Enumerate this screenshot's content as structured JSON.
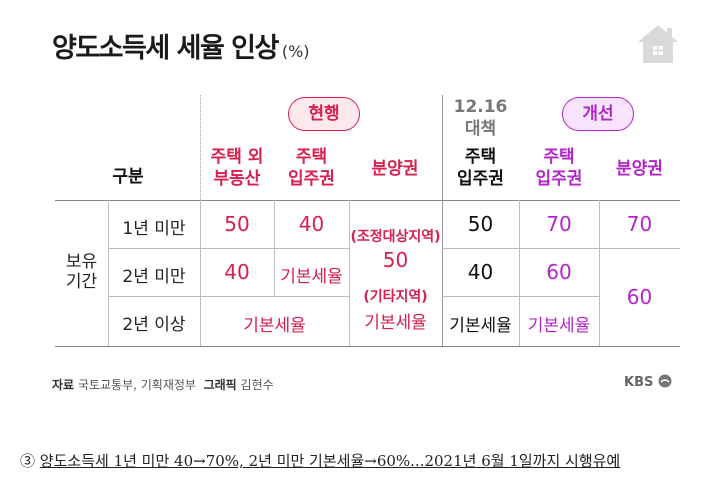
{
  "title": "양도소득세 세율 인상",
  "title_unit": "(%)",
  "pills": {
    "current": "현행",
    "improved": "개선"
  },
  "headers": {
    "category": "구분",
    "house_other_1": "주택 외",
    "house_other_2": "부동산",
    "house_1": "주택",
    "house_2": "입주권",
    "presale": "분양권",
    "dec16_1": "12.16",
    "dec16_2": "대책",
    "dec16_house": "주택",
    "dec16_dot": "·",
    "dec16_right": "입주권",
    "imp_house_1": "주택",
    "imp_house_2": "입주권",
    "imp_presale": "분양권"
  },
  "row_group": {
    "line1": "보유",
    "line2": "기간"
  },
  "rows": {
    "r1_label": "1년 미만",
    "r2_label": "2년 미만",
    "r3_label": "2년 이상",
    "r1_other": "50",
    "r1_house": "40",
    "r2_other": "40",
    "r2_house": "기본세율",
    "r3_merged": "기본세율",
    "presale_adj_label": "(조정대상지역)",
    "presale_adj_value": "50",
    "presale_etc_label": "(기타지역)",
    "presale_etc_value": "기본세율",
    "dec_r1": "50",
    "dec_r2": "40",
    "dec_r3": "기본세율",
    "imp_r1": "70",
    "imp_r2": "60",
    "imp_r3": "기본세율",
    "imp_presale_r1": "70",
    "imp_presale_r23": "60"
  },
  "source": {
    "label1": "자료",
    "text1": "국토교통부, 기획재정부",
    "label2": "그래픽",
    "text2": "김현수"
  },
  "logo": "KBS",
  "caption": {
    "number": "③",
    "text": "양도소득세 1년 미만 40→70%, 2년 미만 기본세율→60%...2021년 6월 1일까지 시행유예"
  },
  "colors": {
    "current": "#d6204e",
    "improved": "#b125c9"
  },
  "icons": {
    "house": "house-icon",
    "kbs": "kbs-logo"
  }
}
